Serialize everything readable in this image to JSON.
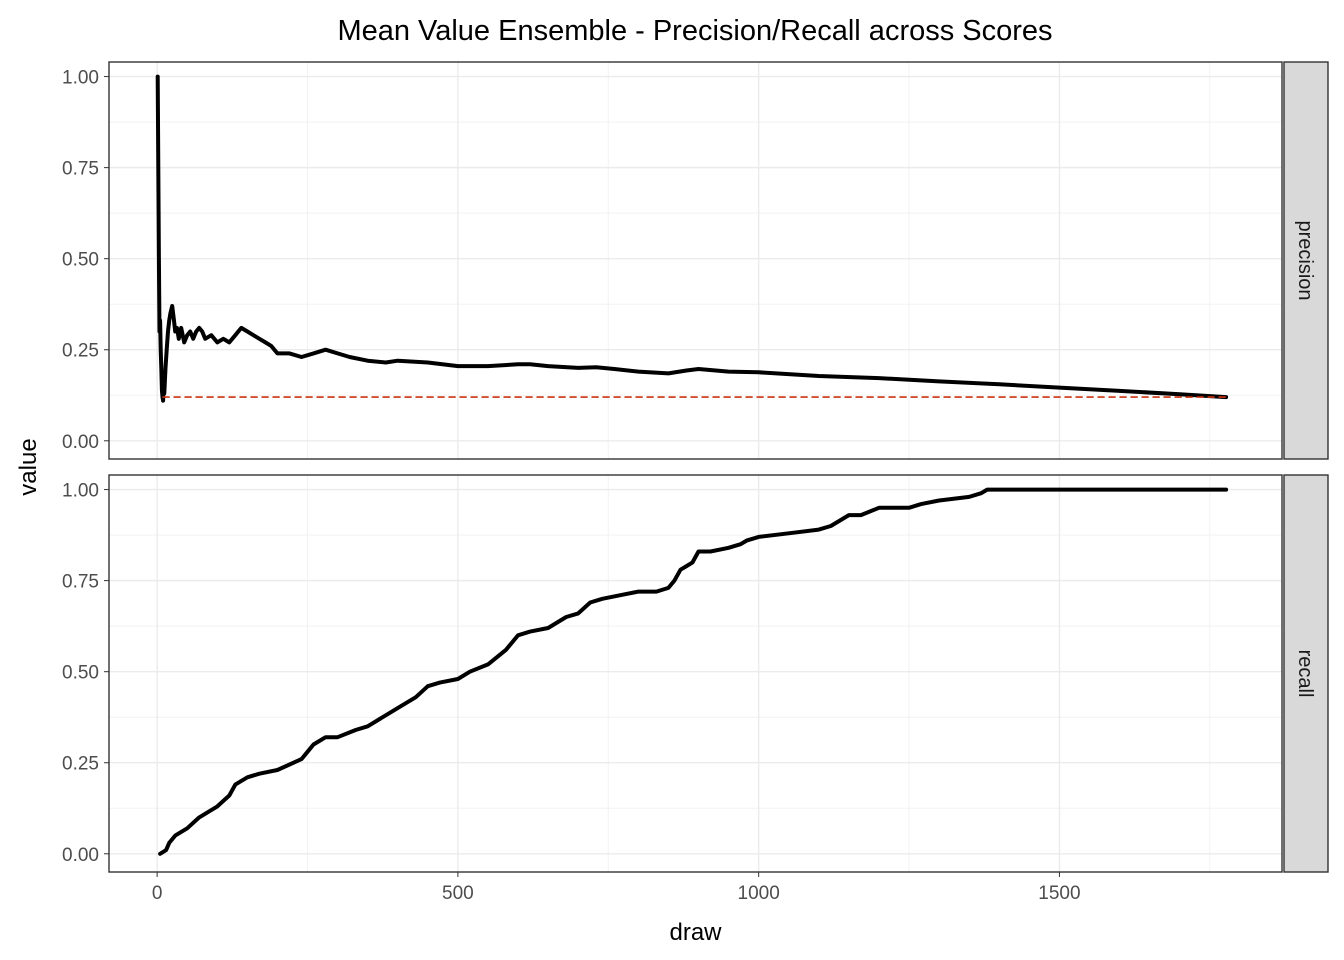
{
  "chart_data": {
    "type": "line",
    "title": "Mean Value Ensemble - Precision/Recall across Scores",
    "xlabel": "draw",
    "ylabel": "value",
    "xlim": [
      -80,
      1870
    ],
    "x_ticks": [
      0,
      500,
      1000,
      1500
    ],
    "x_tick_labels": [
      "0",
      "500",
      "1000",
      "1500"
    ],
    "y_ticks": [
      0,
      0.25,
      0.5,
      0.75,
      1
    ],
    "y_tick_labels": [
      "0.00",
      "0.25",
      "0.50",
      "0.75",
      "1.00"
    ],
    "grid": true,
    "legend": "none",
    "facets": [
      {
        "strip": "precision",
        "ylim": [
          -0.05,
          1.04
        ],
        "series": [
          {
            "color": "#000000",
            "style": "solid",
            "x": [
              1,
              2,
              3,
              4,
              5,
              6,
              7,
              8,
              9,
              10,
              11,
              12,
              14,
              16,
              18,
              20,
              22,
              25,
              28,
              30,
              33,
              36,
              40,
              45,
              50,
              55,
              60,
              65,
              70,
              75,
              80,
              90,
              100,
              110,
              120,
              130,
              140,
              150,
              160,
              170,
              180,
              190,
              200,
              220,
              240,
              260,
              280,
              300,
              320,
              350,
              380,
              400,
              450,
              500,
              550,
              600,
              620,
              650,
              700,
              730,
              760,
              800,
              850,
              880,
              900,
              950,
              1000,
              1100,
              1200,
              1300,
              1400,
              1500,
              1600,
              1700,
              1777
            ],
            "y": [
              1.0,
              0.75,
              0.5,
              0.3,
              0.33,
              0.25,
              0.2,
              0.14,
              0.12,
              0.11,
              0.15,
              0.13,
              0.2,
              0.25,
              0.3,
              0.33,
              0.35,
              0.37,
              0.33,
              0.3,
              0.31,
              0.28,
              0.31,
              0.27,
              0.29,
              0.3,
              0.28,
              0.3,
              0.31,
              0.3,
              0.28,
              0.29,
              0.27,
              0.28,
              0.27,
              0.29,
              0.31,
              0.3,
              0.29,
              0.28,
              0.27,
              0.26,
              0.24,
              0.24,
              0.23,
              0.24,
              0.25,
              0.24,
              0.23,
              0.22,
              0.215,
              0.22,
              0.215,
              0.205,
              0.205,
              0.21,
              0.21,
              0.205,
              0.2,
              0.202,
              0.197,
              0.19,
              0.185,
              0.193,
              0.197,
              0.19,
              0.188,
              0.178,
              0.172,
              0.163,
              0.155,
              0.146,
              0.137,
              0.128,
              0.12
            ]
          },
          {
            "color": "#cc3311",
            "style": "dashed",
            "x": [
              10,
              1777
            ],
            "y": [
              0.12,
              0.12
            ]
          }
        ]
      },
      {
        "strip": "recall",
        "ylim": [
          -0.05,
          1.04
        ],
        "series": [
          {
            "color": "#000000",
            "style": "solid",
            "x": [
              5,
              15,
              20,
              30,
              50,
              70,
              100,
              120,
              130,
              140,
              150,
              170,
              200,
              240,
              250,
              260,
              270,
              280,
              300,
              330,
              350,
              370,
              400,
              430,
              450,
              470,
              500,
              520,
              550,
              580,
              600,
              620,
              650,
              680,
              700,
              720,
              740,
              770,
              800,
              830,
              850,
              860,
              870,
              880,
              890,
              900,
              920,
              950,
              970,
              980,
              1000,
              1050,
              1100,
              1120,
              1150,
              1170,
              1200,
              1250,
              1270,
              1300,
              1350,
              1370,
              1380,
              1400,
              1500,
              1600,
              1700,
              1777
            ],
            "y": [
              0.0,
              0.01,
              0.03,
              0.05,
              0.07,
              0.1,
              0.13,
              0.16,
              0.19,
              0.2,
              0.21,
              0.22,
              0.23,
              0.26,
              0.28,
              0.3,
              0.31,
              0.32,
              0.32,
              0.34,
              0.35,
              0.37,
              0.4,
              0.43,
              0.46,
              0.47,
              0.48,
              0.5,
              0.52,
              0.56,
              0.6,
              0.61,
              0.62,
              0.65,
              0.66,
              0.69,
              0.7,
              0.71,
              0.72,
              0.72,
              0.73,
              0.75,
              0.78,
              0.79,
              0.8,
              0.83,
              0.83,
              0.84,
              0.85,
              0.86,
              0.87,
              0.88,
              0.89,
              0.9,
              0.93,
              0.93,
              0.95,
              0.95,
              0.96,
              0.97,
              0.98,
              0.99,
              1.0,
              1.0,
              1.0,
              1.0,
              1.0,
              1.0
            ]
          }
        ]
      }
    ]
  }
}
